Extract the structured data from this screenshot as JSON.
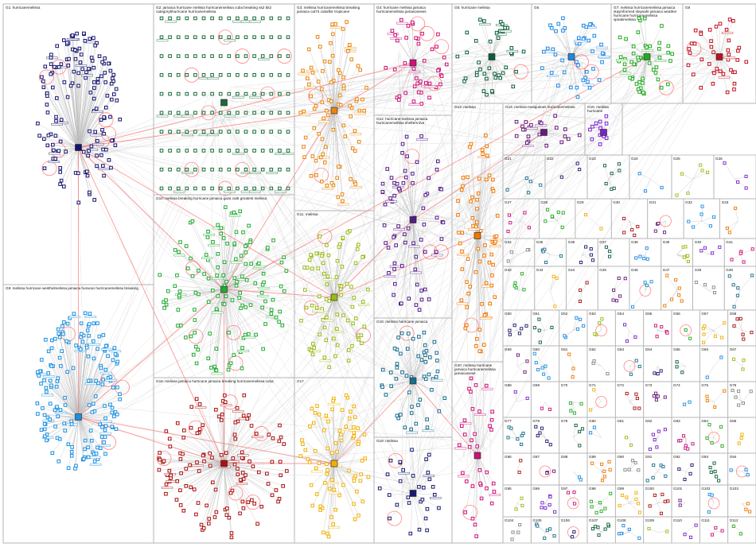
{
  "graph": {
    "edge_color": "#bbbbbb",
    "highlight_edge_color": "#ff5555",
    "border_color": "#b4b4b4",
    "groups": [
      {
        "label": "G1: hurricanemelissa",
        "color": "#14146e"
      },
      {
        "label": "G2: jamaica hurricane melissa hurricanemelissa cuba breaking ss2 bit2 category5hurricane hurricanemelissa",
        "color": "#1a6b3a"
      },
      {
        "label": "G3: melissa hurricanemelissa breaking jamaica cat74 cubaflor tropicane",
        "color": "#e8850c"
      },
      {
        "label": "G4: hurricane melissa jamaica hurricanemelissa jamaicanews",
        "color": "#cc1177"
      },
      {
        "label": "G5: hurricane melissa",
        "color": "#0b5e3a"
      },
      {
        "label": "G6",
        "color": "#1e88e5"
      },
      {
        "label": "G7: melissa hurricanemelissa jamaica stayinformed staysafe jamaica weather hurricane hurricanemelissa speakmelissa",
        "color": "#22aa22"
      },
      {
        "label": "G8",
        "color": "#c01020"
      },
      {
        "label": "G9: melissa hurricane westhelmelissa jamaica huracan hurricanemelissa breaking",
        "color": "#1a90e0"
      },
      {
        "label": "G10: melissa breaking hurricane jamaica gaza cat5 greatest melissa",
        "color": "#22aa33"
      },
      {
        "label": "G11: melissa",
        "color": "#99bb11"
      },
      {
        "label": "G12: hurricane melissa jamaica hurricanemelissa shelters live",
        "color": "#551a8b"
      },
      {
        "label": "G13: melissa",
        "color": "#ee7700"
      },
      {
        "label": "G14: melissa mosquitoes hurricanemelissa",
        "color": "#6a1a7a"
      },
      {
        "label": "G15: melissa hurricane",
        "color": "#7a22cc"
      },
      {
        "label": "G16: melissa jamaica hurricane jamaica breaking hurricanemelissa cuba",
        "color": "#aa1111"
      },
      {
        "label": "G17",
        "color": "#f0b000"
      },
      {
        "label": "G18: melissa hurricane jamaica",
        "color": "#1a6e8e"
      },
      {
        "label": "G19: melissa",
        "color": "#1a1a6e"
      },
      {
        "label": "G20: melissa hurricane jamaica hurricanemelissa jamaicanews",
        "color": "#cc1177"
      }
    ],
    "small_group_labels": [
      "G21",
      "G22",
      "G23",
      "G24",
      "G25",
      "G26",
      "G27",
      "G28",
      "G29",
      "G30",
      "G31",
      "G32",
      "G33",
      "G34",
      "G35",
      "G36",
      "G37",
      "G38",
      "G39",
      "G40",
      "G41",
      "G42",
      "G43",
      "G44",
      "G45",
      "G46",
      "G47",
      "G48",
      "G49",
      "G50",
      "G51",
      "G52",
      "G53",
      "G54",
      "G55",
      "G56",
      "G57",
      "G58",
      "G59",
      "G60",
      "G61",
      "G62",
      "G63",
      "G64",
      "G65",
      "G66",
      "G67",
      "G68",
      "G69",
      "G70",
      "G71",
      "G72",
      "G73",
      "G74",
      "G75",
      "G76",
      "G77",
      "G78",
      "G79",
      "G80",
      "G81",
      "G82",
      "G83",
      "G84",
      "G85",
      "G86",
      "G87",
      "G88",
      "G89",
      "G90",
      "G91",
      "G92",
      "G93",
      "G94",
      "G95",
      "G96",
      "G97",
      "G98",
      "G99",
      "G100",
      "G101",
      "G102",
      "G103",
      "G104",
      "G105",
      "G106",
      "G107",
      "G108",
      "G109",
      "G110",
      "G111",
      "G112"
    ],
    "small_group_colors": [
      "#1a6e8e",
      "#1a1a6e",
      "#0b5e3a",
      "#1e88e5",
      "#99bb11",
      "#7a22cc",
      "#cc1177",
      "#22aa22",
      "#f0b000",
      "#aa1111",
      "#6a1a7a",
      "#1a90e0",
      "#ee7700",
      "#888888"
    ]
  }
}
